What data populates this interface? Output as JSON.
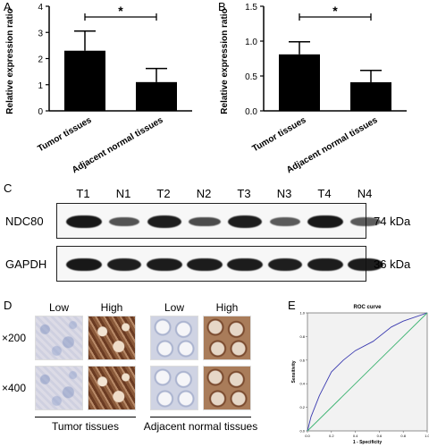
{
  "panels": {
    "a": {
      "label": "A"
    },
    "b": {
      "label": "B"
    },
    "c": {
      "label": "C"
    },
    "d": {
      "label": "D"
    },
    "e": {
      "label": "E"
    }
  },
  "chart_data": [
    {
      "type": "bar",
      "title": "",
      "ylabel": "Relative expression ratio",
      "categories": [
        "Tumor tissues",
        "Adjacent normal tissues"
      ],
      "values": [
        2.3,
        1.1
      ],
      "errors": [
        0.75,
        0.52
      ],
      "ylim": [
        0,
        4
      ],
      "yticks": [
        "0",
        "1",
        "2",
        "3",
        "4"
      ],
      "significance": "*",
      "color": "#000000"
    },
    {
      "type": "bar",
      "title": "",
      "ylabel": "Relative expression ratio",
      "categories": [
        "Tumor tissues",
        "Adjacent normal tissues"
      ],
      "values": [
        0.81,
        0.41
      ],
      "errors": [
        0.18,
        0.17
      ],
      "ylim": [
        0,
        1.5
      ],
      "yticks": [
        "0.0",
        "0.5",
        "1.0",
        "1.5"
      ],
      "significance": "*",
      "color": "#000000"
    },
    {
      "type": "line",
      "title": "ROC curve",
      "xlabel": "1 - Specificity",
      "ylabel": "Sensitivity",
      "xlim": [
        0,
        1
      ],
      "ylim": [
        0,
        1
      ],
      "xticks": [
        "0.0",
        "0.2",
        "0.4",
        "0.6",
        "0.8",
        "1.0"
      ],
      "yticks": [
        "0.0",
        "0.2",
        "0.4",
        "0.6",
        "0.8",
        "1.0"
      ],
      "series": [
        {
          "color": "#3b3bb0",
          "x": [
            0.0,
            0.03,
            0.1,
            0.2,
            0.3,
            0.4,
            0.55,
            0.7,
            0.8,
            1.0
          ],
          "y": [
            0.0,
            0.12,
            0.3,
            0.5,
            0.6,
            0.68,
            0.76,
            0.88,
            0.93,
            1.0
          ]
        },
        {
          "color": "#3cb371",
          "x": [
            0.0,
            1.0
          ],
          "y": [
            0.0,
            1.0
          ]
        }
      ]
    }
  ],
  "blot": {
    "lanes": [
      "T1",
      "N1",
      "T2",
      "N2",
      "T3",
      "N3",
      "T4",
      "N4"
    ],
    "rows": [
      {
        "protein": "NDC80",
        "size": "74 kDa",
        "intensity": [
          0.95,
          0.55,
          0.9,
          0.6,
          0.9,
          0.5,
          0.95,
          0.5
        ]
      },
      {
        "protein": "GAPDH",
        "size": "36 kDa",
        "intensity": [
          0.95,
          0.9,
          0.92,
          0.92,
          0.93,
          0.9,
          0.93,
          0.92
        ]
      }
    ]
  },
  "ihc": {
    "columns": [
      "Low",
      "High",
      "Low",
      "High"
    ],
    "rows": [
      "×200",
      "×400"
    ],
    "groups": [
      "Tumor tissues",
      "Adjacent normal tissues"
    ]
  }
}
